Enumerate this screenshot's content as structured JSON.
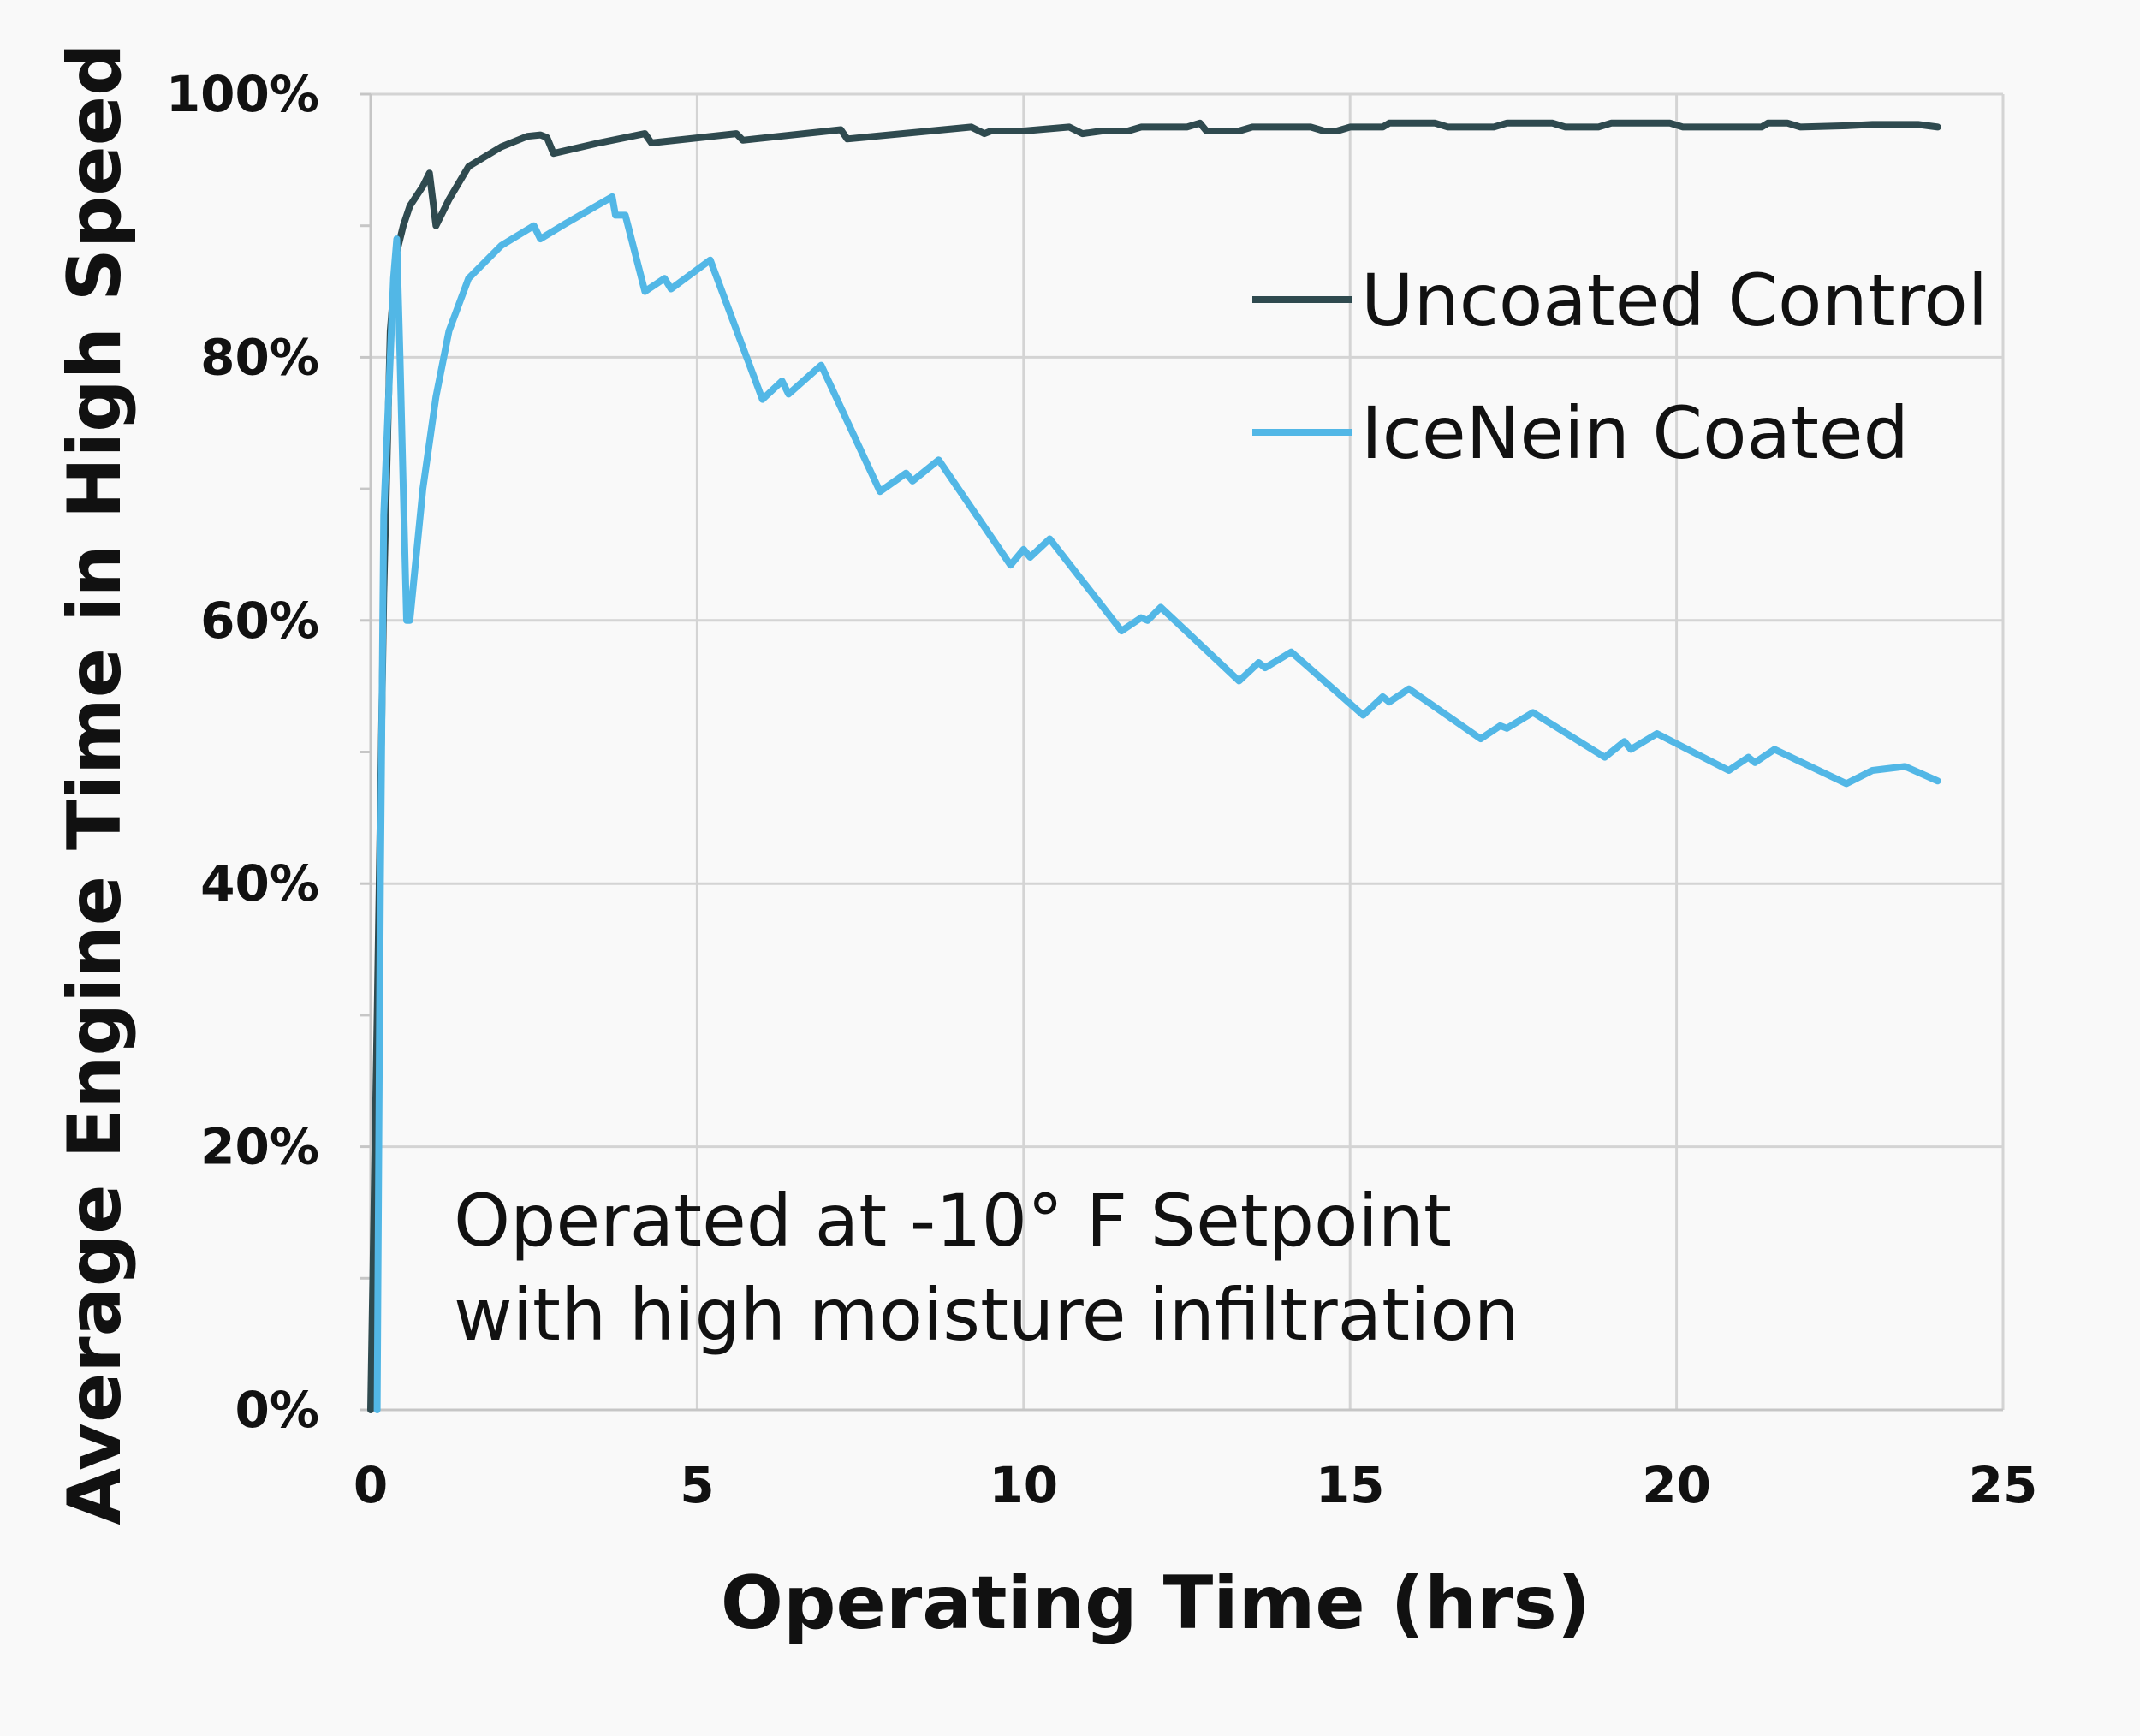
{
  "chart_data": {
    "type": "line",
    "title": "",
    "xlabel": "Operating Time (hrs)",
    "ylabel": "Average Engine Time in High Speed",
    "xlim": [
      0,
      25
    ],
    "ylim": [
      0,
      100
    ],
    "grid": true,
    "legend_position": "top-right",
    "x_ticks": [
      "0",
      "5",
      "10",
      "15",
      "20",
      "25"
    ],
    "y_ticks": [
      "0%",
      "20%",
      "40%",
      "60%",
      "80%",
      "100%"
    ],
    "x_tick_values": [
      0,
      5,
      10,
      15,
      20,
      25
    ],
    "y_tick_values": [
      0,
      20,
      40,
      60,
      80,
      100
    ],
    "annotation": [
      "Operated at -10° F Setpoint",
      "with high moisture infiltration"
    ],
    "series": [
      {
        "name": "Uncoated Control",
        "color": "#2f4a4f",
        "points": [
          [
            0.0,
            0
          ],
          [
            0.1,
            30
          ],
          [
            0.2,
            62
          ],
          [
            0.3,
            82
          ],
          [
            0.4,
            88
          ],
          [
            0.5,
            90
          ],
          [
            0.6,
            91.5
          ],
          [
            0.8,
            93
          ],
          [
            0.9,
            94
          ],
          [
            1.0,
            90
          ],
          [
            1.2,
            92
          ],
          [
            1.5,
            94.5
          ],
          [
            2.0,
            96
          ],
          [
            2.4,
            96.8
          ],
          [
            2.6,
            96.9
          ],
          [
            2.7,
            96.7
          ],
          [
            2.8,
            95.5
          ],
          [
            3.5,
            96.3
          ],
          [
            4.2,
            97
          ],
          [
            4.3,
            96.3
          ],
          [
            5.6,
            97
          ],
          [
            5.7,
            96.5
          ],
          [
            7.2,
            97.3
          ],
          [
            7.3,
            96.6
          ],
          [
            9.2,
            97.5
          ],
          [
            9.4,
            97
          ],
          [
            9.5,
            97.2
          ],
          [
            10.0,
            97.2
          ],
          [
            10.7,
            97.5
          ],
          [
            10.9,
            97
          ],
          [
            11.2,
            97.2
          ],
          [
            11.6,
            97.2
          ],
          [
            11.8,
            97.5
          ],
          [
            12.5,
            97.5
          ],
          [
            12.7,
            97.8
          ],
          [
            12.8,
            97.2
          ],
          [
            13.3,
            97.2
          ],
          [
            13.5,
            97.5
          ],
          [
            14.4,
            97.5
          ],
          [
            14.6,
            97.2
          ],
          [
            14.8,
            97.2
          ],
          [
            15.0,
            97.5
          ],
          [
            15.5,
            97.5
          ],
          [
            15.6,
            97.8
          ],
          [
            16.3,
            97.8
          ],
          [
            16.5,
            97.5
          ],
          [
            17.2,
            97.5
          ],
          [
            17.4,
            97.8
          ],
          [
            18.1,
            97.8
          ],
          [
            18.3,
            97.5
          ],
          [
            18.8,
            97.5
          ],
          [
            19.0,
            97.8
          ],
          [
            19.9,
            97.8
          ],
          [
            20.1,
            97.5
          ],
          [
            21.3,
            97.5
          ],
          [
            21.4,
            97.8
          ],
          [
            21.7,
            97.8
          ],
          [
            21.9,
            97.5
          ],
          [
            22.6,
            97.6
          ],
          [
            23.0,
            97.7
          ],
          [
            23.7,
            97.7
          ],
          [
            24.0,
            97.5
          ]
        ]
      },
      {
        "name": "IceNein Coated",
        "color": "#52b7e6",
        "points": [
          [
            0.1,
            0
          ],
          [
            0.15,
            40
          ],
          [
            0.2,
            68
          ],
          [
            0.3,
            80
          ],
          [
            0.35,
            86
          ],
          [
            0.4,
            89
          ],
          [
            0.45,
            80
          ],
          [
            0.5,
            70
          ],
          [
            0.55,
            60
          ],
          [
            0.6,
            60
          ],
          [
            0.8,
            70
          ],
          [
            1.0,
            77
          ],
          [
            1.2,
            82
          ],
          [
            1.5,
            86
          ],
          [
            2.0,
            88.5
          ],
          [
            2.5,
            90
          ],
          [
            2.6,
            89
          ],
          [
            3.0,
            90.2
          ],
          [
            3.7,
            92.2
          ],
          [
            3.75,
            90.8
          ],
          [
            3.9,
            90.8
          ],
          [
            4.2,
            85
          ],
          [
            4.5,
            86
          ],
          [
            4.6,
            85.2
          ],
          [
            5.2,
            87.4
          ],
          [
            6.0,
            76.8
          ],
          [
            6.3,
            78.2
          ],
          [
            6.4,
            77.2
          ],
          [
            6.9,
            79.4
          ],
          [
            7.8,
            69.8
          ],
          [
            8.2,
            71.2
          ],
          [
            8.3,
            70.6
          ],
          [
            8.7,
            72.2
          ],
          [
            9.8,
            64.2
          ],
          [
            10.0,
            65.4
          ],
          [
            10.1,
            64.8
          ],
          [
            10.4,
            66.2
          ],
          [
            11.5,
            59.2
          ],
          [
            11.8,
            60.2
          ],
          [
            11.9,
            60
          ],
          [
            12.1,
            61
          ],
          [
            13.3,
            55.4
          ],
          [
            13.6,
            56.8
          ],
          [
            13.7,
            56.4
          ],
          [
            14.1,
            57.6
          ],
          [
            15.2,
            52.8
          ],
          [
            15.5,
            54.2
          ],
          [
            15.6,
            53.8
          ],
          [
            15.9,
            54.8
          ],
          [
            17.0,
            51
          ],
          [
            17.3,
            52
          ],
          [
            17.4,
            51.8
          ],
          [
            17.8,
            53
          ],
          [
            18.9,
            49.6
          ],
          [
            19.2,
            50.8
          ],
          [
            19.3,
            50.2
          ],
          [
            19.7,
            51.4
          ],
          [
            20.8,
            48.6
          ],
          [
            21.1,
            49.6
          ],
          [
            21.2,
            49.2
          ],
          [
            21.5,
            50.2
          ],
          [
            22.6,
            47.6
          ],
          [
            23.0,
            48.6
          ],
          [
            23.5,
            48.9
          ],
          [
            24.0,
            47.8
          ]
        ]
      }
    ]
  }
}
